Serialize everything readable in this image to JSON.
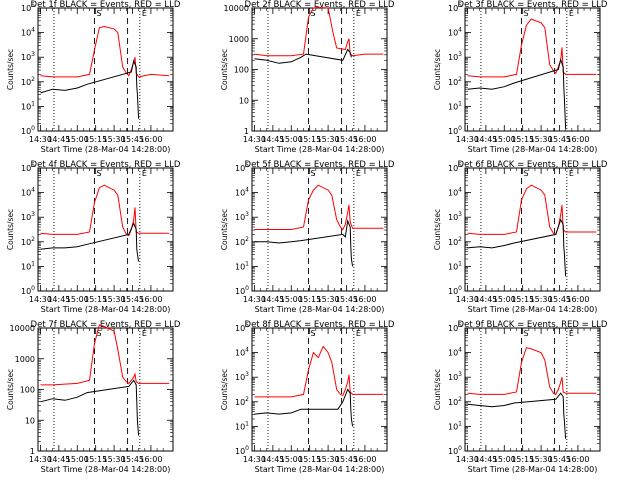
{
  "chart_data": {
    "type": "line",
    "grid_layout": "3x3",
    "common": {
      "xlabel": "Start Time (28-Mar-04 14:28:00)",
      "ylabel": "Counts/sec",
      "x_ticks": [
        "14:30",
        "14:45",
        "15:00",
        "15:15",
        "15:30",
        "15:45",
        "16:00"
      ],
      "x_tick_minutes": [
        0,
        15,
        30,
        45,
        60,
        75,
        90
      ],
      "xlim_minutes": [
        -2,
        108
      ],
      "series_colors": {
        "events": "#000000",
        "lld": "#ff0000"
      },
      "vlines": [
        {
          "style": "dotted",
          "x_minutes": 11
        },
        {
          "style": "dashed",
          "x_minutes": 44,
          "marker": "S"
        },
        {
          "style": "dashed",
          "x_minutes": 71
        },
        {
          "style": "dotted",
          "x_minutes": 81,
          "marker": "E"
        }
      ]
    },
    "panels": [
      {
        "title": "Det 1f BLACK = Events, RED = LLD",
        "tick_style": "exp",
        "ylim_log10": [
          0,
          5
        ],
        "ytick_labels": [
          "10^0",
          "10^1",
          "10^2",
          "10^3",
          "10^4",
          "10^5"
        ],
        "lld": [
          [
            0,
            2.25
          ],
          [
            10,
            2.2
          ],
          [
            30,
            2.2
          ],
          [
            40,
            2.3
          ],
          [
            44,
            3.3
          ],
          [
            48,
            4.2
          ],
          [
            52,
            4.25
          ],
          [
            60,
            4.15
          ],
          [
            63,
            4.0
          ],
          [
            67,
            2.6
          ],
          [
            70,
            2.35
          ],
          [
            72,
            2.25
          ],
          [
            74,
            2.5
          ],
          [
            76,
            2.8
          ],
          [
            77,
            3.0
          ],
          [
            78,
            2.35
          ],
          [
            80,
            2.2
          ],
          [
            90,
            2.3
          ],
          [
            105,
            2.25
          ]
        ],
        "events": [
          [
            0,
            1.55
          ],
          [
            10,
            1.7
          ],
          [
            20,
            1.65
          ],
          [
            30,
            1.75
          ],
          [
            38,
            1.9
          ],
          [
            74,
            2.4
          ],
          [
            76,
            2.85
          ],
          [
            78,
            2.6
          ],
          [
            78.5,
            1.8
          ],
          [
            79,
            1.5
          ],
          [
            80,
            0.5
          ]
        ]
      },
      {
        "title": "Det 2f BLACK = Events, RED = LLD",
        "tick_style": "num",
        "ylim_log10": [
          0,
          4
        ],
        "ytick_labels": [
          "1",
          "10",
          "100",
          "1000",
          "10000"
        ],
        "lld": [
          [
            0,
            2.5
          ],
          [
            10,
            2.45
          ],
          [
            30,
            2.45
          ],
          [
            40,
            2.5
          ],
          [
            44,
            3.7
          ],
          [
            48,
            4.0
          ],
          [
            52,
            4.02
          ],
          [
            60,
            4.0
          ],
          [
            64,
            3.2
          ],
          [
            67,
            2.7
          ],
          [
            74,
            2.65
          ],
          [
            76,
            2.9
          ],
          [
            77,
            3.0
          ],
          [
            78,
            2.5
          ],
          [
            80,
            2.45
          ],
          [
            90,
            2.5
          ],
          [
            105,
            2.5
          ]
        ],
        "events": [
          [
            0,
            2.35
          ],
          [
            10,
            2.3
          ],
          [
            20,
            2.2
          ],
          [
            30,
            2.25
          ],
          [
            38,
            2.4
          ],
          [
            42,
            2.5
          ],
          [
            72,
            2.3
          ],
          [
            76,
            2.65
          ],
          [
            78,
            2.55
          ],
          [
            79,
            2.4
          ]
        ]
      },
      {
        "title": "Det 3f BLACK = Events, RED = LLD",
        "tick_style": "exp",
        "ylim_log10": [
          0,
          5
        ],
        "ytick_labels": [
          "10^0",
          "10^1",
          "10^2",
          "10^3",
          "10^4",
          "10^5"
        ],
        "lld": [
          [
            0,
            2.25
          ],
          [
            10,
            2.2
          ],
          [
            30,
            2.2
          ],
          [
            40,
            2.3
          ],
          [
            44,
            3.5
          ],
          [
            48,
            4.3
          ],
          [
            52,
            4.55
          ],
          [
            60,
            4.4
          ],
          [
            63,
            4.2
          ],
          [
            67,
            2.7
          ],
          [
            70,
            2.45
          ],
          [
            72,
            2.35
          ],
          [
            74,
            2.6
          ],
          [
            76,
            2.9
          ],
          [
            77,
            3.4
          ],
          [
            78,
            2.4
          ],
          [
            80,
            2.3
          ],
          [
            90,
            2.3
          ],
          [
            105,
            2.3
          ]
        ],
        "events": [
          [
            0,
            1.7
          ],
          [
            10,
            1.75
          ],
          [
            20,
            1.7
          ],
          [
            30,
            1.8
          ],
          [
            38,
            1.95
          ],
          [
            74,
            2.5
          ],
          [
            76,
            2.9
          ],
          [
            78,
            2.6
          ],
          [
            78.5,
            1.8
          ],
          [
            79,
            1.3
          ],
          [
            80,
            0.1
          ]
        ]
      },
      {
        "title": "Det 4f BLACK = Events, RED = LLD",
        "tick_style": "exp",
        "ylim_log10": [
          0,
          5
        ],
        "ytick_labels": [
          "10^0",
          "10^1",
          "10^2",
          "10^3",
          "10^4",
          "10^5"
        ],
        "lld": [
          [
            0,
            2.35
          ],
          [
            10,
            2.3
          ],
          [
            30,
            2.3
          ],
          [
            40,
            2.4
          ],
          [
            44,
            3.6
          ],
          [
            48,
            4.2
          ],
          [
            52,
            4.3
          ],
          [
            60,
            4.1
          ],
          [
            63,
            3.9
          ],
          [
            67,
            2.6
          ],
          [
            70,
            2.3
          ],
          [
            72,
            2.25
          ],
          [
            74,
            2.5
          ],
          [
            76,
            2.9
          ],
          [
            77,
            3.4
          ],
          [
            78,
            2.4
          ],
          [
            80,
            2.35
          ],
          [
            90,
            2.35
          ],
          [
            105,
            2.35
          ]
        ],
        "events": [
          [
            0,
            1.7
          ],
          [
            10,
            1.75
          ],
          [
            20,
            1.75
          ],
          [
            30,
            1.8
          ],
          [
            38,
            1.9
          ],
          [
            72,
            2.3
          ],
          [
            76,
            2.75
          ],
          [
            78,
            2.5
          ],
          [
            78.5,
            1.7
          ],
          [
            79,
            1.5
          ],
          [
            80,
            1.2
          ]
        ]
      },
      {
        "title": "Det 5f BLACK = Events, RED = LLD",
        "tick_style": "exp",
        "ylim_log10": [
          0,
          5
        ],
        "ytick_labels": [
          "10^0",
          "10^1",
          "10^2",
          "10^3",
          "10^4",
          "10^5"
        ],
        "lld": [
          [
            0,
            2.5
          ],
          [
            10,
            2.5
          ],
          [
            30,
            2.5
          ],
          [
            40,
            2.6
          ],
          [
            44,
            3.7
          ],
          [
            48,
            4.1
          ],
          [
            52,
            4.3
          ],
          [
            60,
            4.1
          ],
          [
            63,
            3.9
          ],
          [
            67,
            2.9
          ],
          [
            70,
            2.6
          ],
          [
            72,
            2.5
          ],
          [
            74,
            2.7
          ],
          [
            76,
            3.2
          ],
          [
            77,
            3.5
          ],
          [
            78,
            2.8
          ],
          [
            80,
            2.55
          ],
          [
            90,
            2.55
          ],
          [
            105,
            2.55
          ]
        ],
        "events": [
          [
            0,
            2.0
          ],
          [
            10,
            2.0
          ],
          [
            20,
            1.95
          ],
          [
            30,
            2.0
          ],
          [
            38,
            2.05
          ],
          [
            72,
            2.3
          ],
          [
            74,
            2.2
          ],
          [
            76,
            2.85
          ],
          [
            78,
            2.6
          ],
          [
            78.5,
            1.8
          ],
          [
            79,
            1.3
          ],
          [
            80,
            1.0
          ]
        ]
      },
      {
        "title": "Det 6f BLACK = Events, RED = LLD",
        "tick_style": "exp",
        "ylim_log10": [
          0,
          5
        ],
        "ytick_labels": [
          "10^0",
          "10^1",
          "10^2",
          "10^3",
          "10^4",
          "10^5"
        ],
        "lld": [
          [
            0,
            2.35
          ],
          [
            10,
            2.3
          ],
          [
            30,
            2.3
          ],
          [
            40,
            2.4
          ],
          [
            44,
            3.7
          ],
          [
            48,
            4.15
          ],
          [
            52,
            4.3
          ],
          [
            60,
            4.1
          ],
          [
            63,
            3.9
          ],
          [
            67,
            2.6
          ],
          [
            70,
            2.35
          ],
          [
            72,
            2.3
          ],
          [
            74,
            2.6
          ],
          [
            76,
            3.1
          ],
          [
            77,
            3.5
          ],
          [
            78,
            2.5
          ],
          [
            80,
            2.4
          ],
          [
            90,
            2.4
          ],
          [
            105,
            2.4
          ]
        ],
        "events": [
          [
            0,
            1.75
          ],
          [
            10,
            1.8
          ],
          [
            20,
            1.75
          ],
          [
            30,
            1.85
          ],
          [
            38,
            1.95
          ],
          [
            72,
            2.3
          ],
          [
            76,
            2.9
          ],
          [
            78,
            2.7
          ],
          [
            78.5,
            1.8
          ],
          [
            79,
            1.5
          ],
          [
            80,
            0.6
          ]
        ]
      },
      {
        "title": "Det 7f BLACK = Events, RED = LLD",
        "tick_style": "num",
        "ylim_log10": [
          0,
          4
        ],
        "ytick_labels": [
          "1",
          "10",
          "100",
          "1000",
          "10000"
        ],
        "lld": [
          [
            0,
            2.15
          ],
          [
            10,
            2.15
          ],
          [
            30,
            2.2
          ],
          [
            40,
            2.3
          ],
          [
            44,
            3.5
          ],
          [
            48,
            4.1
          ],
          [
            52,
            4.05
          ],
          [
            60,
            3.9
          ],
          [
            63,
            3.3
          ],
          [
            67,
            2.4
          ],
          [
            70,
            2.25
          ],
          [
            72,
            2.2
          ],
          [
            74,
            2.3
          ],
          [
            76,
            2.4
          ],
          [
            77,
            2.5
          ],
          [
            78,
            2.25
          ],
          [
            80,
            2.2
          ],
          [
            90,
            2.2
          ],
          [
            105,
            2.2
          ]
        ],
        "events": [
          [
            0,
            1.6
          ],
          [
            10,
            1.7
          ],
          [
            20,
            1.65
          ],
          [
            30,
            1.75
          ],
          [
            38,
            1.9
          ],
          [
            72,
            2.1
          ],
          [
            76,
            2.3
          ],
          [
            78,
            2.15
          ],
          [
            78.5,
            1.6
          ],
          [
            79,
            1.0
          ],
          [
            80,
            0.5
          ]
        ]
      },
      {
        "title": "Det 8f BLACK = Events, RED = LLD",
        "tick_style": "exp",
        "ylim_log10": [
          0,
          5
        ],
        "ytick_labels": [
          "10^0",
          "10^1",
          "10^2",
          "10^3",
          "10^4",
          "10^5"
        ],
        "lld": [
          [
            0,
            2.2
          ],
          [
            10,
            2.2
          ],
          [
            30,
            2.2
          ],
          [
            40,
            2.3
          ],
          [
            44,
            3.3
          ],
          [
            48,
            4.0
          ],
          [
            52,
            3.8
          ],
          [
            56,
            4.25
          ],
          [
            60,
            4.0
          ],
          [
            63,
            3.6
          ],
          [
            67,
            2.5
          ],
          [
            70,
            2.3
          ],
          [
            72,
            2.25
          ],
          [
            74,
            2.5
          ],
          [
            76,
            2.8
          ],
          [
            77,
            3.1
          ],
          [
            78,
            2.4
          ],
          [
            80,
            2.3
          ],
          [
            90,
            2.3
          ],
          [
            105,
            2.3
          ]
        ],
        "events": [
          [
            0,
            1.5
          ],
          [
            10,
            1.55
          ],
          [
            20,
            1.5
          ],
          [
            30,
            1.55
          ],
          [
            38,
            1.7
          ],
          [
            68,
            1.7
          ],
          [
            72,
            2.0
          ],
          [
            76,
            2.5
          ],
          [
            78,
            2.35
          ],
          [
            78.5,
            1.7
          ],
          [
            79,
            1.3
          ],
          [
            80,
            1.0
          ]
        ]
      },
      {
        "title": "Det 9f BLACK = Events, RED = LLD",
        "tick_style": "exp",
        "ylim_log10": [
          0,
          5
        ],
        "ytick_labels": [
          "10^0",
          "10^1",
          "10^2",
          "10^3",
          "10^4",
          "10^5"
        ],
        "lld": [
          [
            0,
            2.35
          ],
          [
            10,
            2.3
          ],
          [
            30,
            2.3
          ],
          [
            40,
            2.4
          ],
          [
            44,
            3.6
          ],
          [
            48,
            4.2
          ],
          [
            52,
            4.15
          ],
          [
            60,
            4.0
          ],
          [
            63,
            3.7
          ],
          [
            67,
            2.6
          ],
          [
            70,
            2.35
          ],
          [
            72,
            2.3
          ],
          [
            74,
            2.5
          ],
          [
            76,
            2.8
          ],
          [
            77,
            3.0
          ],
          [
            78,
            2.4
          ],
          [
            80,
            2.35
          ],
          [
            90,
            2.35
          ],
          [
            105,
            2.35
          ]
        ],
        "events": [
          [
            0,
            1.9
          ],
          [
            10,
            1.85
          ],
          [
            20,
            1.8
          ],
          [
            30,
            1.85
          ],
          [
            38,
            1.95
          ],
          [
            72,
            2.1
          ],
          [
            76,
            2.35
          ],
          [
            78,
            2.2
          ],
          [
            78.5,
            1.5
          ],
          [
            79,
            1.2
          ],
          [
            80,
            0.5
          ]
        ]
      }
    ]
  }
}
